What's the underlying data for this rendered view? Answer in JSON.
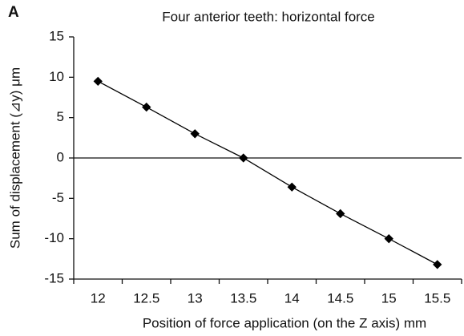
{
  "panel_label": "A",
  "chart_data": {
    "type": "line",
    "title": "Four anterior teeth: horizontal force",
    "xlabel": "Position of force application (on the Z axis) mm",
    "ylabel": "Sum of displacement (⊿y) μm",
    "categories": [
      "12",
      "12.5",
      "13",
      "13.5",
      "14",
      "14.5",
      "15",
      "15.5"
    ],
    "series": [
      {
        "name": "Sum of displacement",
        "color": "#000000",
        "values": [
          9.5,
          6.3,
          3.0,
          0.0,
          -3.6,
          -6.9,
          -10.0,
          -13.2
        ]
      }
    ],
    "ylim": [
      -15,
      15
    ],
    "yticks": [
      -15,
      -10,
      -5,
      0,
      5,
      10,
      15
    ],
    "grid": false
  }
}
